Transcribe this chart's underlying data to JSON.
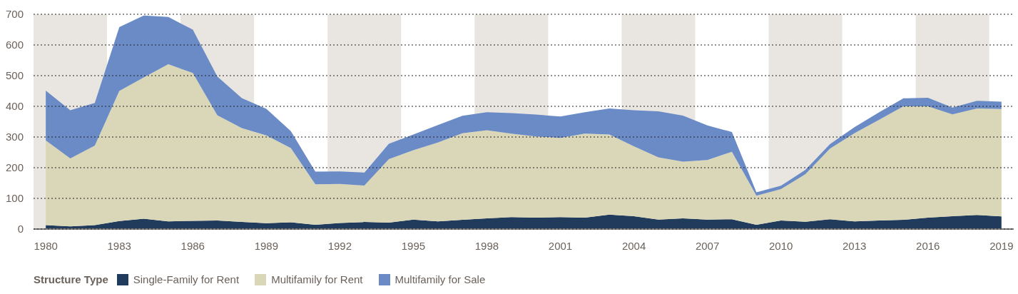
{
  "chart_data": {
    "type": "area",
    "stacked": true,
    "legend_title": "Structure Type",
    "legend": "bottom left",
    "grid": "y",
    "x": [
      1980,
      1981,
      1982,
      1983,
      1984,
      1985,
      1986,
      1987,
      1988,
      1989,
      1990,
      1991,
      1992,
      1993,
      1994,
      1995,
      1996,
      1997,
      1998,
      1999,
      2000,
      2001,
      2002,
      2003,
      2004,
      2005,
      2006,
      2007,
      2008,
      2009,
      2010,
      2011,
      2012,
      2013,
      2014,
      2015,
      2016,
      2017,
      2018,
      2019
    ],
    "series": [
      {
        "name": "Single-Family for Rent",
        "color": "#203b5b",
        "values": [
          13,
          9,
          13,
          26,
          34,
          25,
          27,
          28,
          23,
          19,
          22,
          14,
          20,
          23,
          21,
          31,
          25,
          30,
          35,
          39,
          37,
          39,
          37,
          47,
          42,
          31,
          35,
          31,
          32,
          14,
          28,
          24,
          32,
          25,
          28,
          30,
          37,
          42,
          46,
          41
        ]
      },
      {
        "name": "Multifamily for Rent",
        "color": "#d9d7b7",
        "values": [
          276,
          221,
          259,
          424,
          460,
          512,
          482,
          343,
          306,
          286,
          242,
          132,
          127,
          119,
          207,
          226,
          257,
          282,
          287,
          272,
          265,
          258,
          274,
          261,
          228,
          203,
          185,
          194,
          220,
          95,
          102,
          155,
          230,
          287,
          328,
          370,
          363,
          332,
          347,
          350
        ]
      },
      {
        "name": "Multifamily for Sale",
        "color": "#6a8bc6",
        "values": [
          162,
          157,
          139,
          208,
          202,
          154,
          141,
          126,
          98,
          87,
          55,
          41,
          41,
          42,
          50,
          51,
          57,
          57,
          59,
          67,
          71,
          70,
          70,
          85,
          117,
          150,
          150,
          113,
          64,
          11,
          11,
          14,
          15,
          20,
          24,
          26,
          28,
          22,
          25,
          24
        ]
      }
    ],
    "xlim": [
      1979.5,
      2019.5
    ],
    "xticks": [
      1980,
      1983,
      1986,
      1989,
      1992,
      1995,
      1998,
      2001,
      2004,
      2007,
      2010,
      2013,
      2016,
      2019
    ],
    "ylim": [
      0,
      700
    ],
    "yticks": [
      0,
      100,
      200,
      300,
      400,
      500,
      600,
      700
    ],
    "bands": [
      {
        "axis": "x",
        "from": 1979.5,
        "to": 1982.5,
        "color": "#e9e6e1"
      },
      {
        "axis": "x",
        "from": 1985.5,
        "to": 1988.5,
        "color": "#e9e6e1"
      },
      {
        "axis": "x",
        "from": 1991.5,
        "to": 1994.5,
        "color": "#e9e6e1"
      },
      {
        "axis": "x",
        "from": 1997.5,
        "to": 2000.5,
        "color": "#e9e6e1"
      },
      {
        "axis": "x",
        "from": 2003.5,
        "to": 2006.5,
        "color": "#e9e6e1"
      },
      {
        "axis": "x",
        "from": 2009.5,
        "to": 2012.5,
        "color": "#e9e6e1"
      },
      {
        "axis": "x",
        "from": 2015.5,
        "to": 2018.5,
        "color": "#e9e6e1"
      }
    ]
  }
}
